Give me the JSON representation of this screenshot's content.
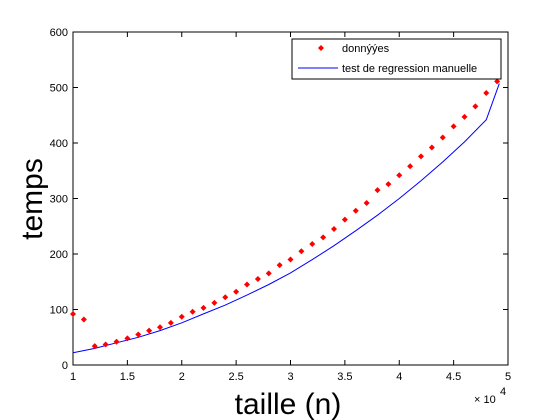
{
  "chart_data": {
    "type": "scatter",
    "title": "",
    "xlabel": "taille (n)",
    "ylabel": "temps",
    "x_multiplier_label": "× 10",
    "x_multiplier_exponent": "4",
    "xlim": [
      1,
      5
    ],
    "ylim": [
      0,
      600
    ],
    "x_ticks": [
      "1",
      "1.5",
      "2",
      "2.5",
      "3",
      "3.5",
      "4",
      "4.5",
      "5"
    ],
    "y_ticks": [
      "0",
      "100",
      "200",
      "300",
      "400",
      "500",
      "600"
    ],
    "legend_position": "top-right",
    "series": [
      {
        "name": "donnýýes",
        "style": "markers",
        "color": "#ff0000",
        "x": [
          1.0,
          1.1,
          1.2,
          1.3,
          1.4,
          1.5,
          1.6,
          1.7,
          1.8,
          1.9,
          2.0,
          2.1,
          2.2,
          2.3,
          2.4,
          2.5,
          2.6,
          2.7,
          2.8,
          2.9,
          3.0,
          3.1,
          3.2,
          3.3,
          3.4,
          3.5,
          3.6,
          3.7,
          3.8,
          3.9,
          4.0,
          4.1,
          4.2,
          4.3,
          4.4,
          4.5,
          4.6,
          4.7,
          4.8,
          4.9
        ],
        "y": [
          92,
          82,
          34,
          37,
          42,
          48,
          55,
          62,
          68,
          76,
          87,
          96,
          103,
          112,
          122,
          132,
          145,
          155,
          165,
          180,
          190,
          205,
          218,
          230,
          245,
          262,
          278,
          292,
          315,
          326,
          342,
          358,
          376,
          392,
          410,
          430,
          447,
          466,
          490,
          511
        ]
      },
      {
        "name": "test de regression manuelle",
        "style": "line",
        "color": "#0000ff",
        "x": [
          1.0,
          1.2,
          1.4,
          1.6,
          1.8,
          2.0,
          2.2,
          2.4,
          2.6,
          2.8,
          3.0,
          3.2,
          3.4,
          3.6,
          3.8,
          4.0,
          4.2,
          4.4,
          4.6,
          4.8,
          4.92
        ],
        "y": [
          22,
          30,
          40,
          50,
          62,
          76,
          92,
          108,
          126,
          145,
          166,
          190,
          215,
          242,
          270,
          300,
          332,
          366,
          402,
          442,
          507
        ]
      }
    ]
  }
}
